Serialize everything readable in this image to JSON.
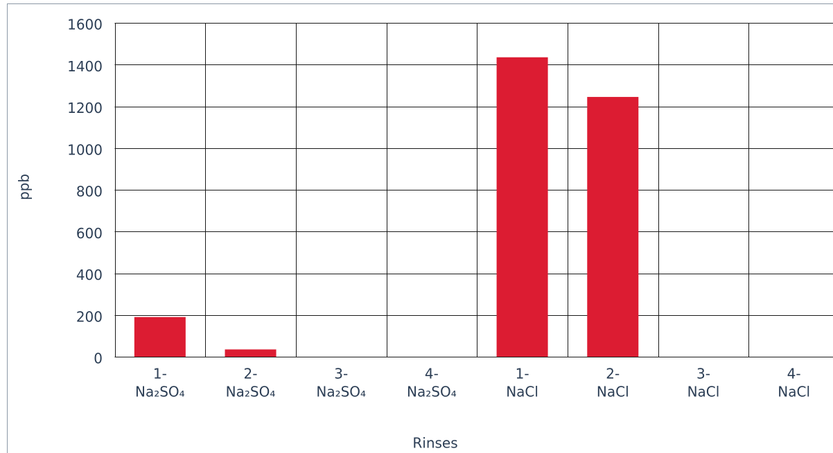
{
  "chart_data": {
    "type": "bar",
    "y_label": "ppb",
    "x_label": "Rinses",
    "categories": [
      [
        "1-",
        "Na₂SO₄"
      ],
      [
        "2-",
        "Na₂SO₄"
      ],
      [
        "3-",
        "Na₂SO₄"
      ],
      [
        "4-",
        "Na₂SO₄"
      ],
      [
        "1-",
        "NaCl"
      ],
      [
        "2-",
        "NaCl"
      ],
      [
        "3-",
        "NaCl"
      ],
      [
        "4-",
        "NaCl"
      ]
    ],
    "values": [
      190,
      35,
      0,
      0,
      1435,
      1245,
      0,
      0
    ],
    "color": "#dc1c32",
    "ylim": [
      0,
      1600
    ],
    "yticks": [
      0,
      200,
      400,
      600,
      800,
      1000,
      1200,
      1400,
      1600
    ],
    "grid": true
  }
}
